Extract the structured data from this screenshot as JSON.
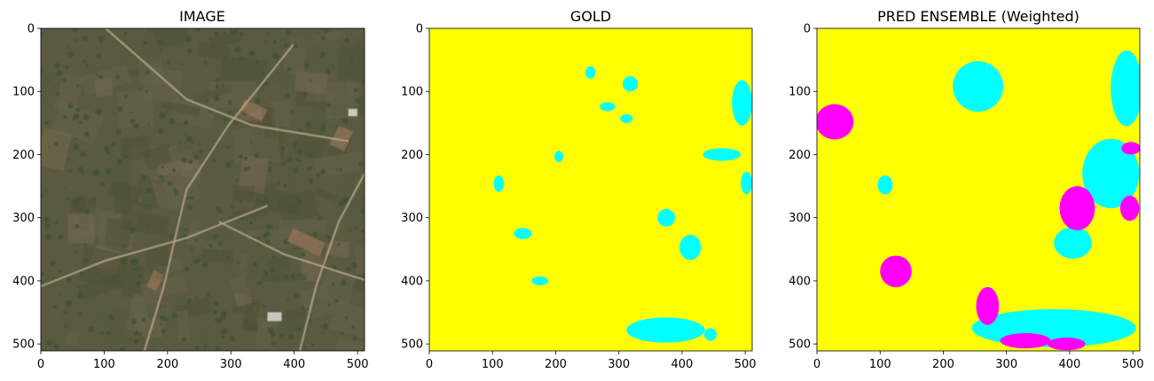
{
  "chart_data": [
    {
      "type": "image",
      "title": "IMAGE",
      "xlim": [
        0,
        511
      ],
      "ylim": [
        511,
        0
      ],
      "xticks": [
        0,
        100,
        200,
        300,
        400,
        500
      ],
      "yticks": [
        0,
        100,
        200,
        300,
        400,
        500
      ],
      "content": "satellite photograph (rural land)",
      "palette": {
        "ground": "#5a5a40",
        "vegetation": "#3f5334",
        "road": "#b8a98a",
        "bare_soil": "#a07a5e"
      }
    },
    {
      "type": "heatmap",
      "title": "GOLD",
      "xlim": [
        0,
        511
      ],
      "ylim": [
        511,
        0
      ],
      "xticks": [
        0,
        100,
        200,
        300,
        400,
        500
      ],
      "yticks": [
        0,
        100,
        200,
        300,
        400,
        500
      ],
      "class_colors": {
        "background": "#ffff00",
        "class_cyan": "#00ffff"
      },
      "regions": [
        {
          "class": "class_cyan",
          "center": [
            255,
            70
          ],
          "radius": [
            8,
            10
          ]
        },
        {
          "class": "class_cyan",
          "center": [
            318,
            88
          ],
          "radius": [
            12,
            12
          ]
        },
        {
          "class": "class_cyan",
          "center": [
            282,
            124
          ],
          "radius": [
            12,
            7
          ]
        },
        {
          "class": "class_cyan",
          "center": [
            312,
            143
          ],
          "radius": [
            10,
            7
          ]
        },
        {
          "class": "class_cyan",
          "center": [
            205,
            203
          ],
          "radius": [
            7,
            9
          ]
        },
        {
          "class": "class_cyan",
          "center": [
            110,
            246
          ],
          "radius": [
            8,
            13
          ]
        },
        {
          "class": "class_cyan",
          "center": [
            148,
            325
          ],
          "radius": [
            14,
            9
          ]
        },
        {
          "class": "class_cyan",
          "center": [
            175,
            400
          ],
          "radius": [
            13,
            7
          ]
        },
        {
          "class": "class_cyan",
          "center": [
            375,
            300
          ],
          "radius": [
            14,
            14
          ]
        },
        {
          "class": "class_cyan",
          "center": [
            413,
            347
          ],
          "radius": [
            17,
            20
          ]
        },
        {
          "class": "class_cyan",
          "center": [
            495,
            118
          ],
          "radius": [
            16,
            36
          ]
        },
        {
          "class": "class_cyan",
          "center": [
            463,
            200
          ],
          "radius": [
            30,
            10
          ]
        },
        {
          "class": "class_cyan",
          "center": [
            502,
            245
          ],
          "radius": [
            9,
            18
          ]
        },
        {
          "class": "class_cyan",
          "center": [
            374,
            478
          ],
          "radius": [
            62,
            20
          ]
        },
        {
          "class": "class_cyan",
          "center": [
            445,
            485
          ],
          "radius": [
            10,
            10
          ]
        }
      ]
    },
    {
      "type": "heatmap",
      "title": "PRED ENSEMBLE (Weighted)",
      "xlim": [
        0,
        511
      ],
      "ylim": [
        511,
        0
      ],
      "xticks": [
        0,
        100,
        200,
        300,
        400,
        500
      ],
      "yticks": [
        0,
        100,
        200,
        300,
        400,
        500
      ],
      "class_colors": {
        "background": "#ffff00",
        "class_cyan": "#00ffff",
        "class_magenta": "#ff00ff"
      },
      "regions": [
        {
          "class": "class_cyan",
          "center": [
            255,
            92
          ],
          "radius": [
            40,
            40
          ]
        },
        {
          "class": "class_cyan",
          "center": [
            490,
            95
          ],
          "radius": [
            25,
            60
          ]
        },
        {
          "class": "class_cyan",
          "center": [
            465,
            230
          ],
          "radius": [
            45,
            55
          ]
        },
        {
          "class": "class_cyan",
          "center": [
            405,
            340
          ],
          "radius": [
            30,
            25
          ]
        },
        {
          "class": "class_cyan",
          "center": [
            108,
            248
          ],
          "radius": [
            12,
            15
          ]
        },
        {
          "class": "class_cyan",
          "center": [
            375,
            475
          ],
          "radius": [
            130,
            30
          ]
        },
        {
          "class": "class_magenta",
          "center": [
            28,
            148
          ],
          "radius": [
            30,
            28
          ]
        },
        {
          "class": "class_magenta",
          "center": [
            125,
            385
          ],
          "radius": [
            25,
            25
          ]
        },
        {
          "class": "class_magenta",
          "center": [
            412,
            285
          ],
          "radius": [
            28,
            35
          ]
        },
        {
          "class": "class_magenta",
          "center": [
            495,
            285
          ],
          "radius": [
            15,
            20
          ]
        },
        {
          "class": "class_magenta",
          "center": [
            270,
            440
          ],
          "radius": [
            18,
            30
          ]
        },
        {
          "class": "class_magenta",
          "center": [
            330,
            495
          ],
          "radius": [
            40,
            12
          ]
        },
        {
          "class": "class_magenta",
          "center": [
            395,
            500
          ],
          "radius": [
            30,
            10
          ]
        },
        {
          "class": "class_magenta",
          "center": [
            497,
            190
          ],
          "radius": [
            15,
            10
          ]
        }
      ]
    }
  ]
}
